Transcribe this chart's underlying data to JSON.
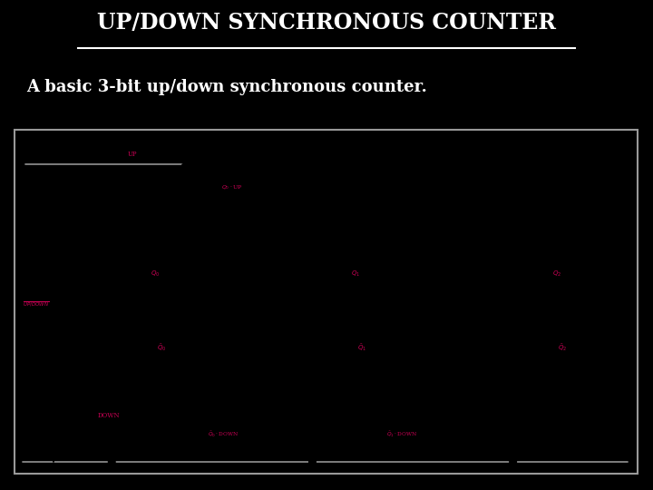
{
  "bg_color": "#000000",
  "title": "UP/DOWN SYNCHRONOUS COUNTER",
  "subtitle": "A basic 3-bit up/down synchronous counter.",
  "title_color": "#ffffff",
  "subtitle_color": "#ffffff",
  "diagram_bg": "#f0ece0",
  "magenta": "#cc0055",
  "black": "#000000",
  "lw_thin": 1.3,
  "lw_thick": 2.0
}
